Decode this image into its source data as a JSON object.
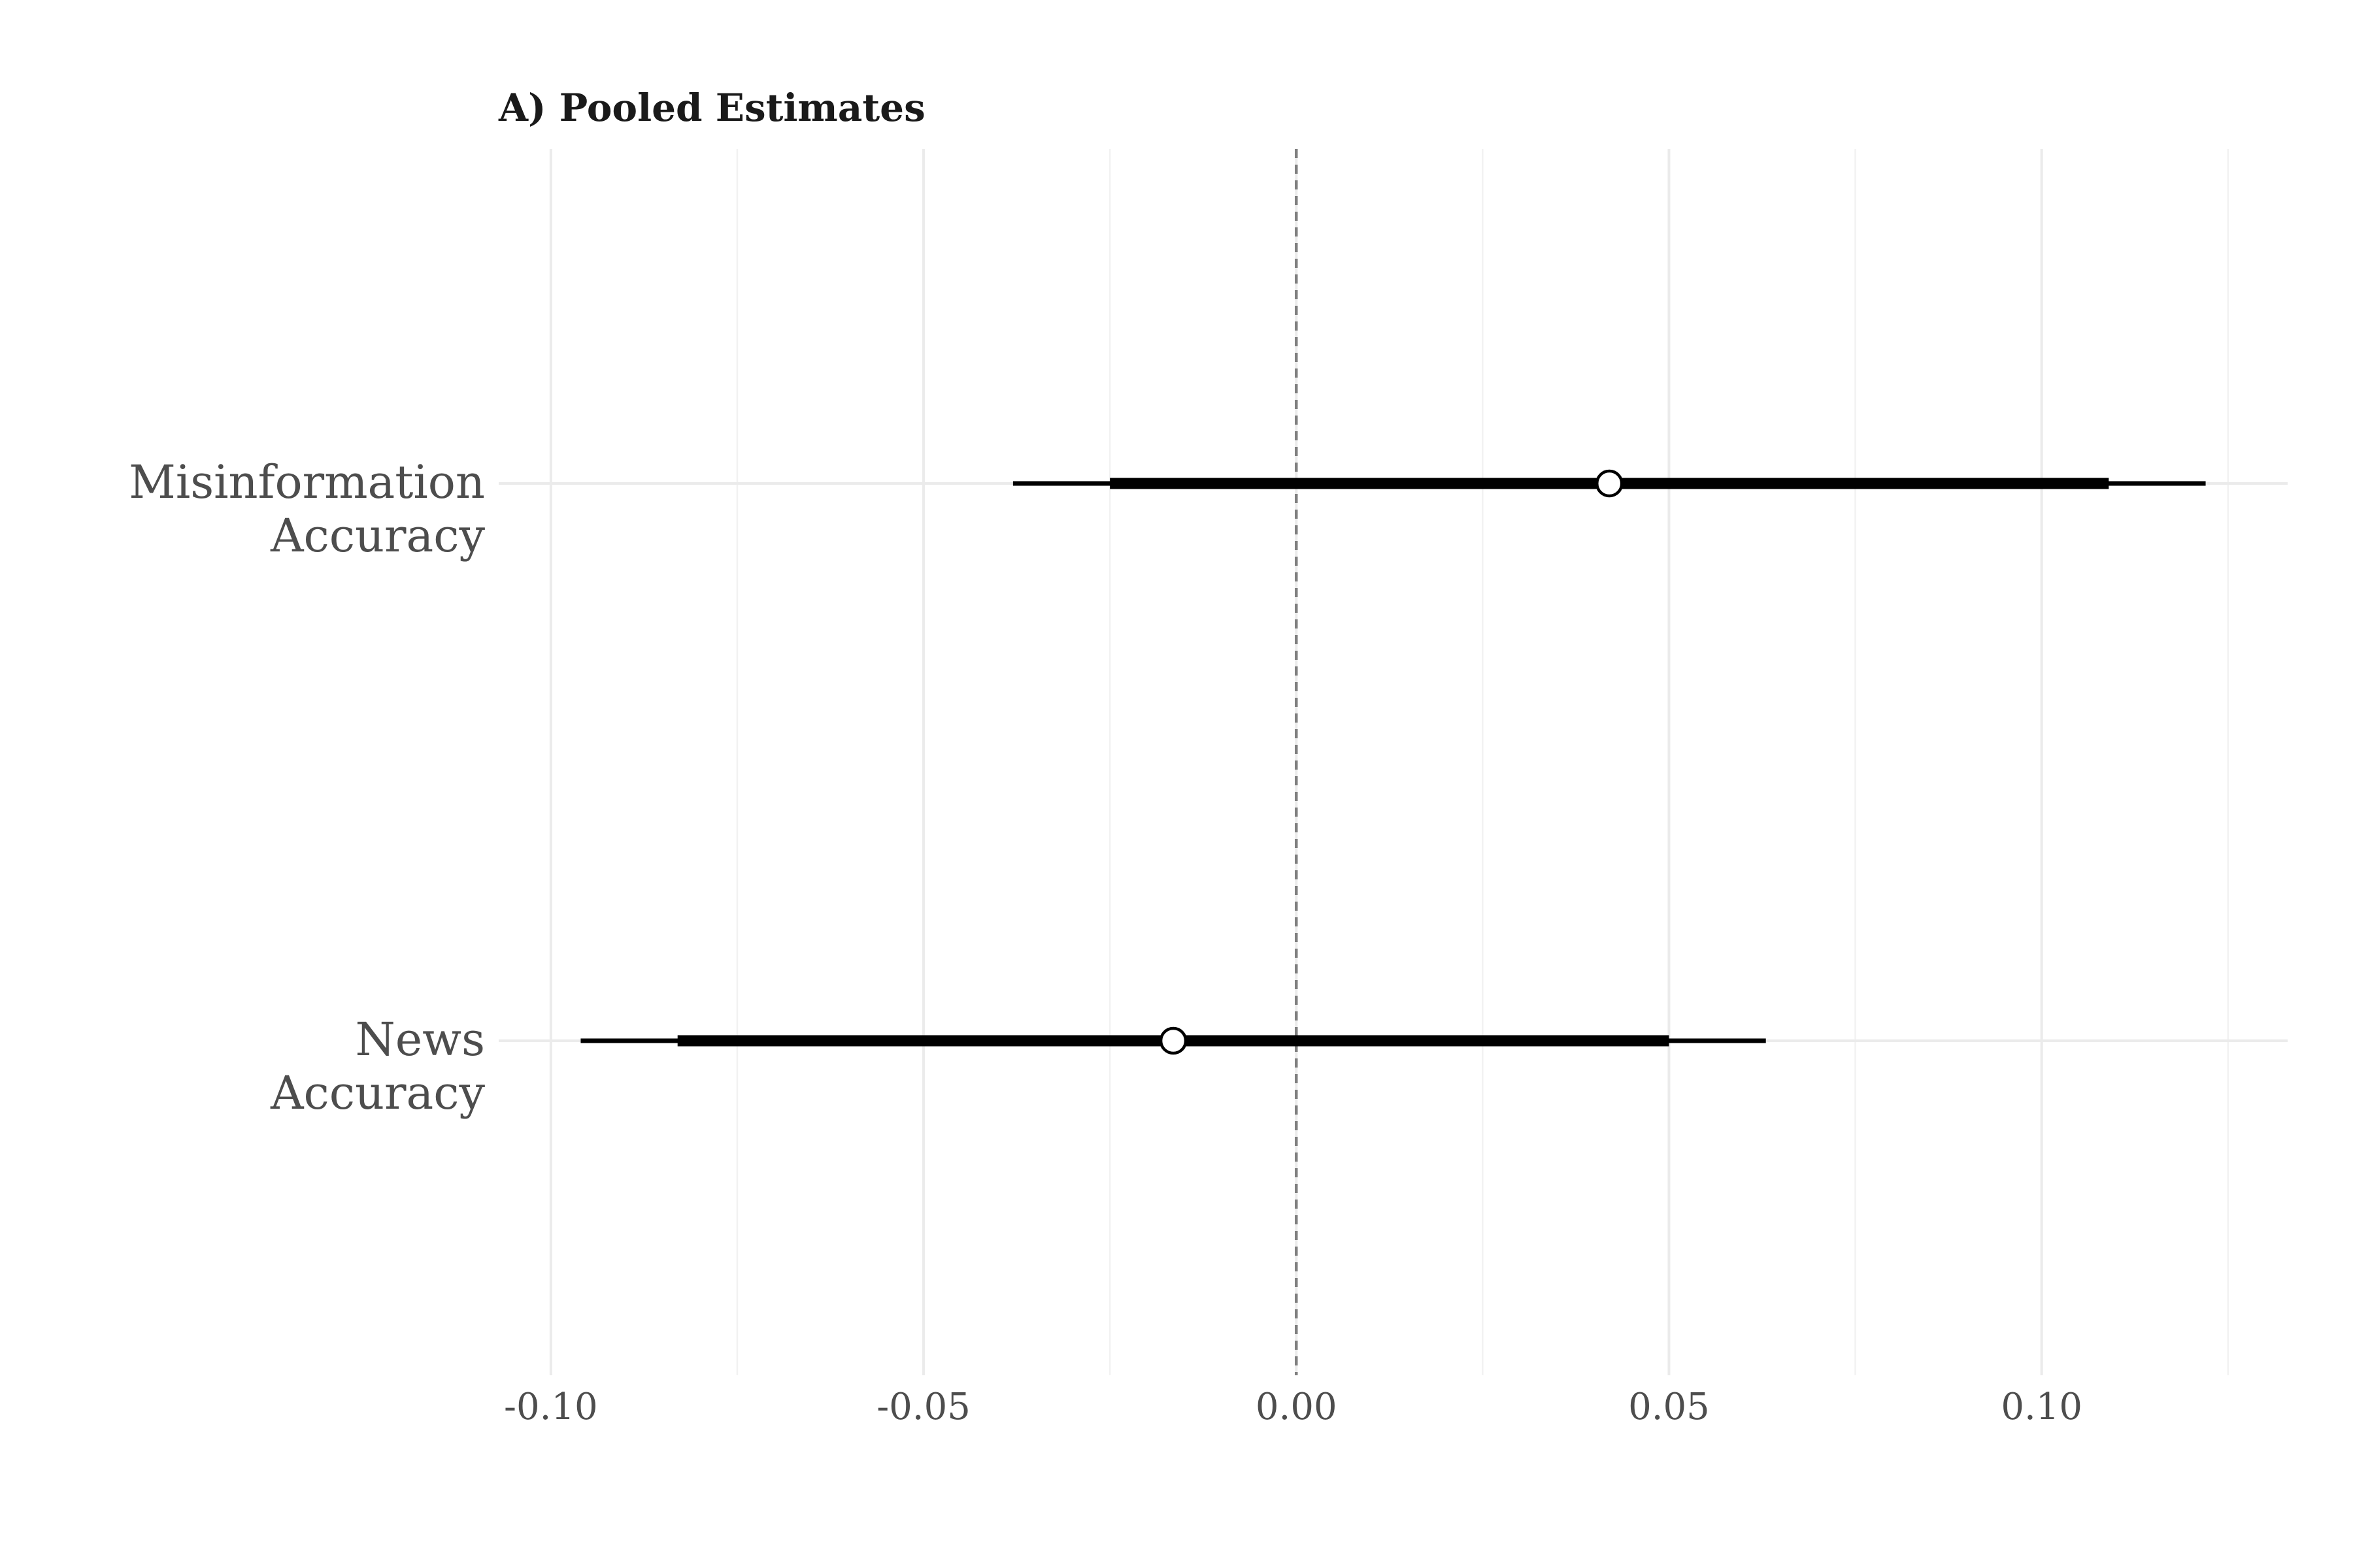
{
  "chart_data": {
    "type": "forest",
    "title": "A) Pooled Estimates",
    "xlim": [
      -0.107,
      0.133
    ],
    "x_ticks": [
      -0.1,
      -0.05,
      0.0,
      0.05,
      0.1
    ],
    "x_tick_labels": [
      "-0.10",
      "-0.05",
      "0.00",
      "0.05",
      "0.10"
    ],
    "reference_line": 0.0,
    "grid": true,
    "rows": [
      {
        "label": [
          "Misinformation",
          "Accuracy"
        ],
        "estimate": 0.042,
        "ci_inner": [
          -0.025,
          0.109
        ],
        "ci_outer": [
          -0.038,
          0.122
        ]
      },
      {
        "label": [
          "News",
          "Accuracy"
        ],
        "estimate": -0.0165,
        "ci_inner": [
          -0.083,
          0.05
        ],
        "ci_outer": [
          -0.096,
          0.063
        ]
      }
    ]
  }
}
